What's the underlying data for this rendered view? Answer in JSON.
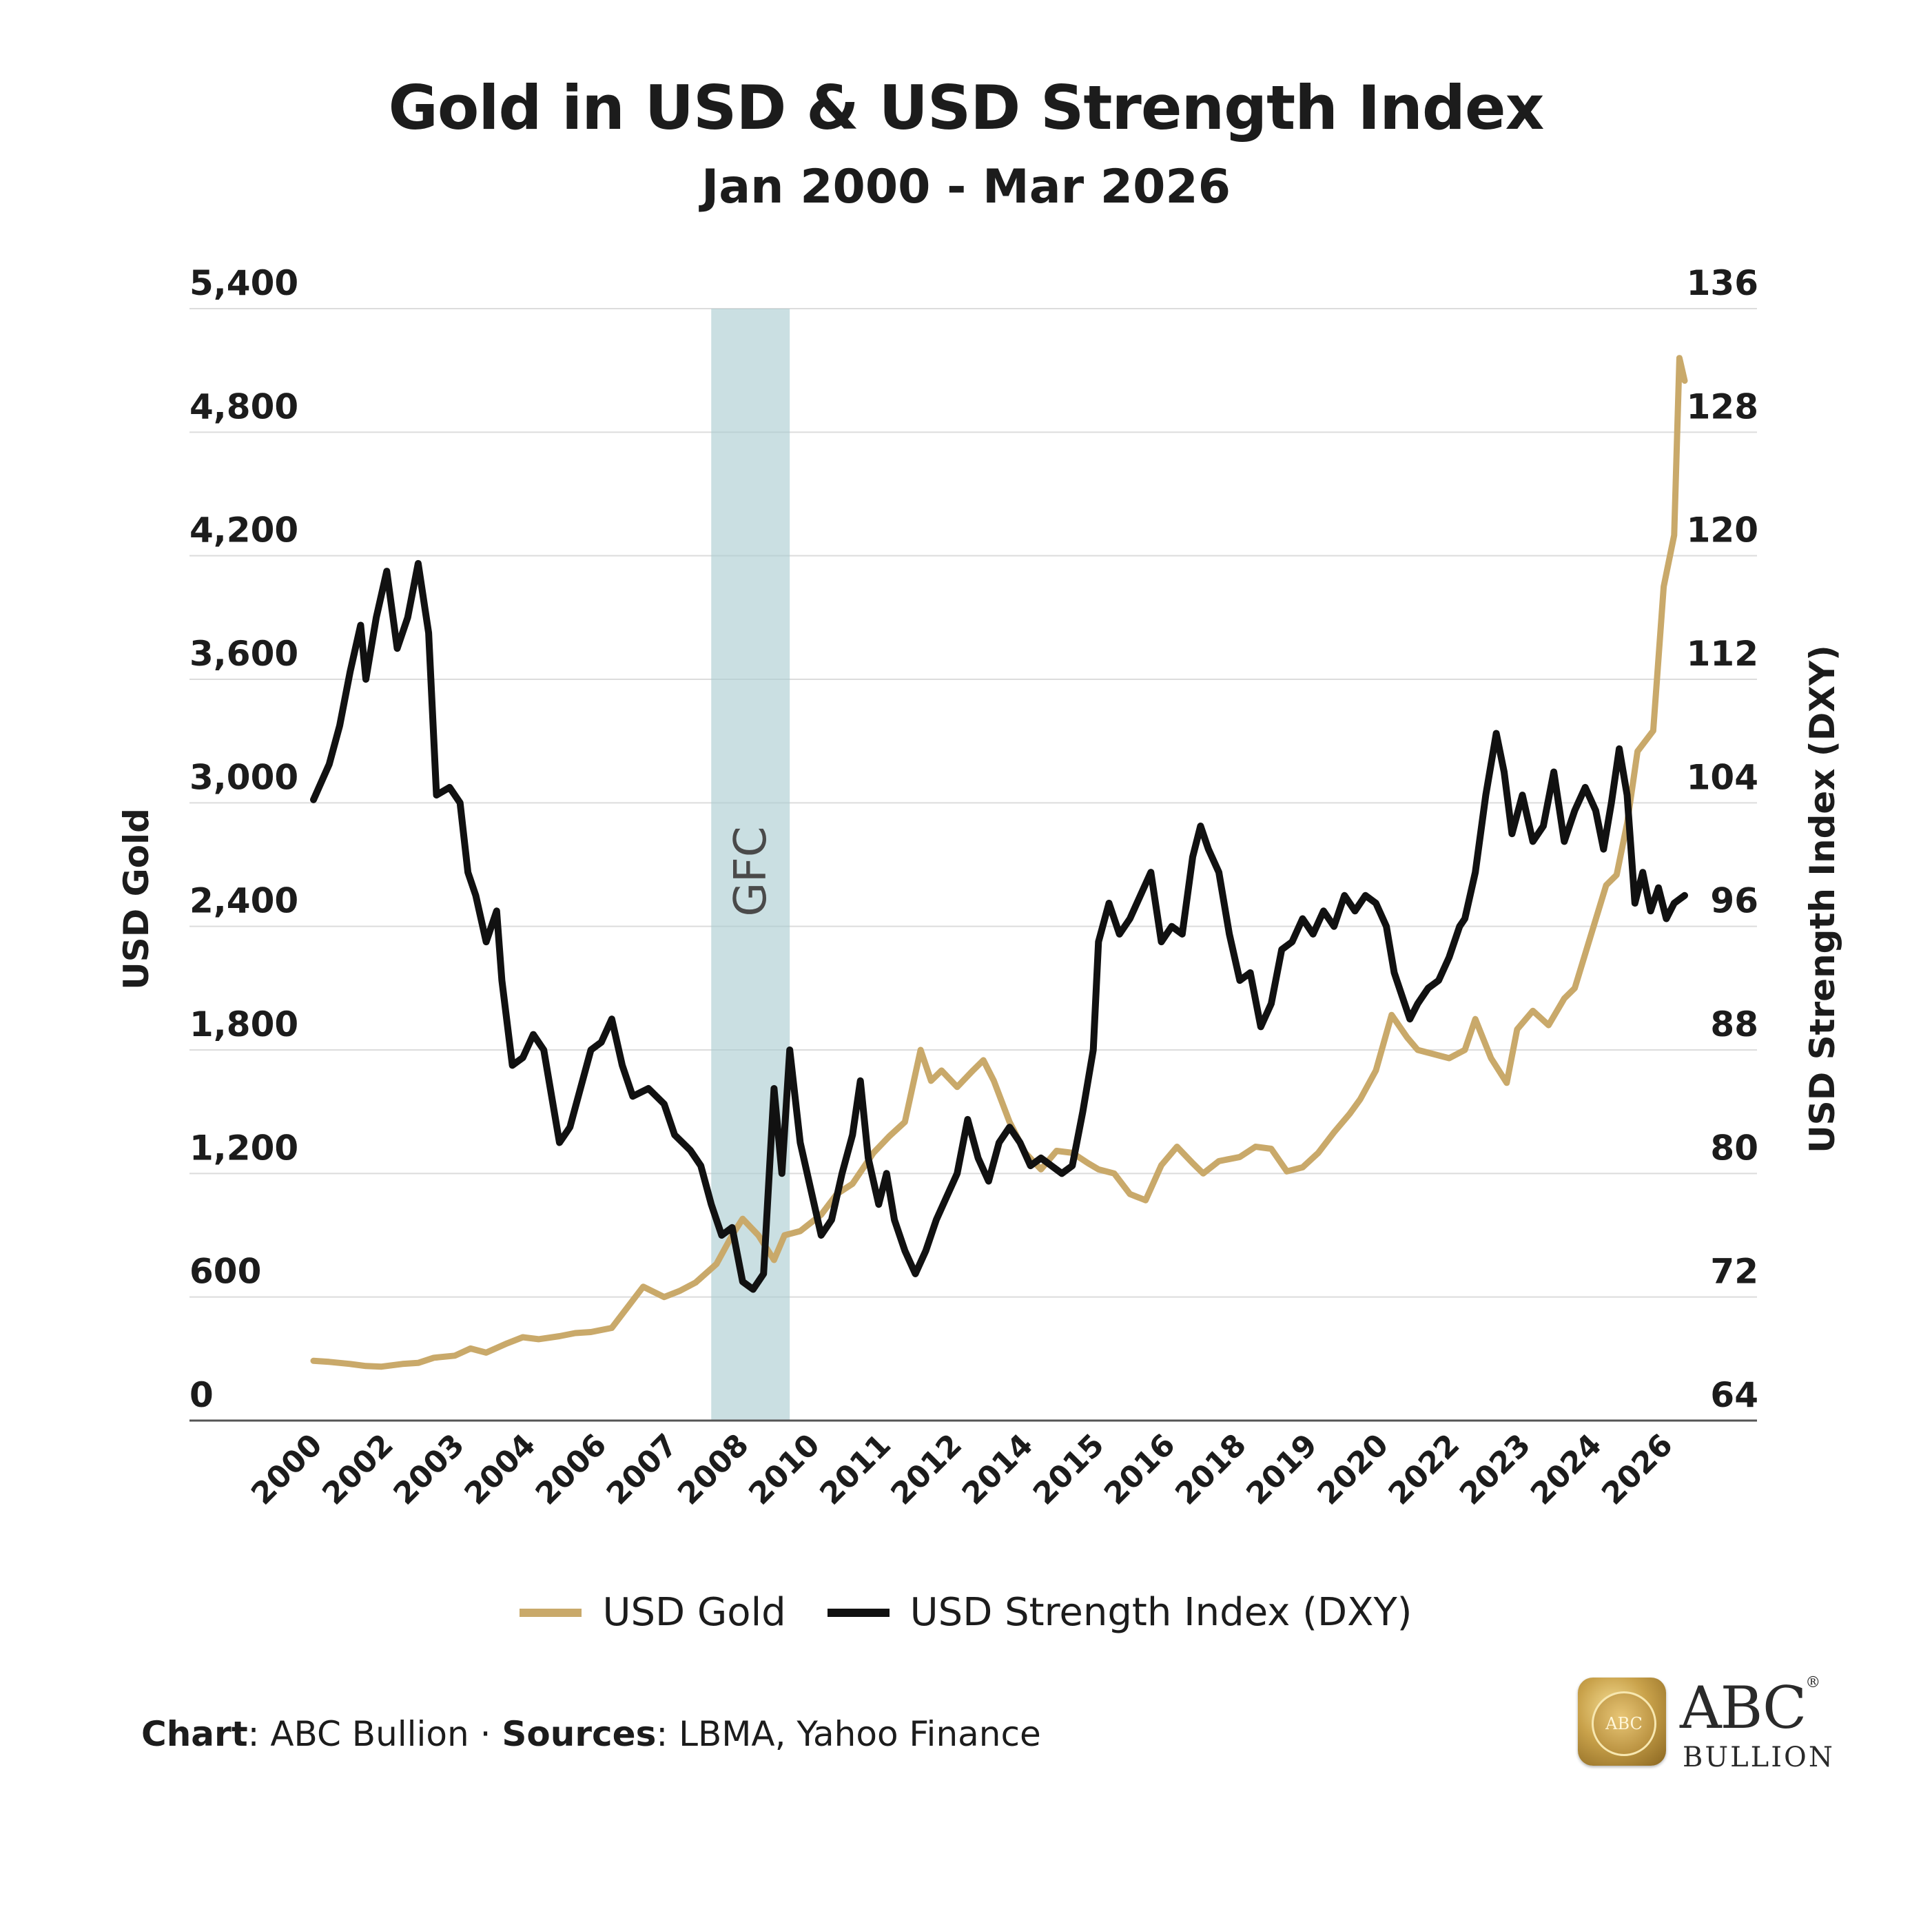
{
  "chart_data": {
    "type": "line",
    "title": "Gold in USD & USD Strength Index",
    "subtitle": "Jan 2000 - Mar 2026",
    "ylabel_left": "USD Gold",
    "ylabel_right": "USD Strength Index (DXY)",
    "ylim_left": [
      0,
      5400
    ],
    "ylim_right": [
      64,
      136
    ],
    "yticks_left": [
      "0",
      "600",
      "1,200",
      "1,800",
      "2,400",
      "3,000",
      "3,600",
      "4,200",
      "4,800",
      "5,400"
    ],
    "yticks_right": [
      "64",
      "72",
      "80",
      "88",
      "96",
      "104",
      "112",
      "120",
      "128",
      "136"
    ],
    "xticks": [
      "2000",
      "2002",
      "2003",
      "2004",
      "2006",
      "2007",
      "2008",
      "2010",
      "2011",
      "2012",
      "2014",
      "2015",
      "2016",
      "2018",
      "2019",
      "2020",
      "2022",
      "2023",
      "2024",
      "2026"
    ],
    "grid": true,
    "legend_position": "bottom",
    "shaded_region": {
      "label": "GFC",
      "start": 2007.6,
      "end": 2009.1
    },
    "series": [
      {
        "name": "USD Gold",
        "color": "#c9a96a",
        "axis": "left",
        "points": [
          [
            2000.0,
            290
          ],
          [
            2000.3,
            285
          ],
          [
            2000.7,
            275
          ],
          [
            2001.0,
            265
          ],
          [
            2001.3,
            262
          ],
          [
            2001.7,
            275
          ],
          [
            2002.0,
            280
          ],
          [
            2002.3,
            305
          ],
          [
            2002.7,
            315
          ],
          [
            2003.0,
            350
          ],
          [
            2003.3,
            330
          ],
          [
            2003.7,
            375
          ],
          [
            2004.0,
            405
          ],
          [
            2004.3,
            395
          ],
          [
            2004.7,
            410
          ],
          [
            2005.0,
            425
          ],
          [
            2005.3,
            430
          ],
          [
            2005.7,
            450
          ],
          [
            2006.0,
            550
          ],
          [
            2006.3,
            650
          ],
          [
            2006.7,
            600
          ],
          [
            2007.0,
            630
          ],
          [
            2007.3,
            670
          ],
          [
            2007.7,
            760
          ],
          [
            2008.0,
            900
          ],
          [
            2008.2,
            980
          ],
          [
            2008.5,
            900
          ],
          [
            2008.8,
            780
          ],
          [
            2009.0,
            900
          ],
          [
            2009.3,
            920
          ],
          [
            2009.7,
            1000
          ],
          [
            2010.0,
            1100
          ],
          [
            2010.3,
            1150
          ],
          [
            2010.7,
            1300
          ],
          [
            2011.0,
            1380
          ],
          [
            2011.3,
            1450
          ],
          [
            2011.6,
            1800
          ],
          [
            2011.8,
            1650
          ],
          [
            2012.0,
            1700
          ],
          [
            2012.3,
            1620
          ],
          [
            2012.6,
            1700
          ],
          [
            2012.8,
            1750
          ],
          [
            2013.0,
            1650
          ],
          [
            2013.3,
            1450
          ],
          [
            2013.6,
            1300
          ],
          [
            2013.9,
            1220
          ],
          [
            2014.2,
            1310
          ],
          [
            2014.5,
            1300
          ],
          [
            2014.8,
            1250
          ],
          [
            2015.0,
            1220
          ],
          [
            2015.3,
            1200
          ],
          [
            2015.6,
            1100
          ],
          [
            2015.9,
            1070
          ],
          [
            2016.2,
            1240
          ],
          [
            2016.5,
            1330
          ],
          [
            2016.8,
            1250
          ],
          [
            2017.0,
            1200
          ],
          [
            2017.3,
            1260
          ],
          [
            2017.7,
            1280
          ],
          [
            2018.0,
            1330
          ],
          [
            2018.3,
            1320
          ],
          [
            2018.6,
            1210
          ],
          [
            2018.9,
            1230
          ],
          [
            2019.2,
            1300
          ],
          [
            2019.5,
            1400
          ],
          [
            2019.8,
            1490
          ],
          [
            2020.0,
            1560
          ],
          [
            2020.3,
            1700
          ],
          [
            2020.6,
            1970
          ],
          [
            2020.9,
            1860
          ],
          [
            2021.1,
            1800
          ],
          [
            2021.4,
            1780
          ],
          [
            2021.7,
            1760
          ],
          [
            2022.0,
            1800
          ],
          [
            2022.2,
            1950
          ],
          [
            2022.5,
            1760
          ],
          [
            2022.8,
            1640
          ],
          [
            2023.0,
            1900
          ],
          [
            2023.3,
            1990
          ],
          [
            2023.6,
            1920
          ],
          [
            2023.9,
            2050
          ],
          [
            2024.1,
            2100
          ],
          [
            2024.4,
            2350
          ],
          [
            2024.7,
            2600
          ],
          [
            2024.9,
            2650
          ],
          [
            2025.1,
            2900
          ],
          [
            2025.3,
            3250
          ],
          [
            2025.6,
            3350
          ],
          [
            2025.8,
            4050
          ],
          [
            2026.0,
            4300
          ],
          [
            2026.1,
            5160
          ],
          [
            2026.2,
            5050
          ]
        ]
      },
      {
        "name": "USD Strength Index (DXY)",
        "color": "#111111",
        "axis": "right",
        "points": [
          [
            2000.0,
            104.2
          ],
          [
            2000.3,
            106.5
          ],
          [
            2000.5,
            109.0
          ],
          [
            2000.7,
            112.5
          ],
          [
            2000.9,
            115.5
          ],
          [
            2001.0,
            112.0
          ],
          [
            2001.2,
            116.0
          ],
          [
            2001.4,
            119.0
          ],
          [
            2001.6,
            114.0
          ],
          [
            2001.8,
            116.0
          ],
          [
            2002.0,
            119.5
          ],
          [
            2002.2,
            115.0
          ],
          [
            2002.35,
            104.5
          ],
          [
            2002.6,
            105.0
          ],
          [
            2002.8,
            104.0
          ],
          [
            2002.95,
            99.5
          ],
          [
            2003.1,
            98.0
          ],
          [
            2003.3,
            95.0
          ],
          [
            2003.5,
            97.0
          ],
          [
            2003.6,
            92.5
          ],
          [
            2003.8,
            87.0
          ],
          [
            2004.0,
            87.5
          ],
          [
            2004.2,
            89.0
          ],
          [
            2004.4,
            88.0
          ],
          [
            2004.7,
            82.0
          ],
          [
            2004.9,
            83.0
          ],
          [
            2005.1,
            85.5
          ],
          [
            2005.3,
            88.0
          ],
          [
            2005.5,
            88.5
          ],
          [
            2005.7,
            90.0
          ],
          [
            2005.9,
            87.0
          ],
          [
            2006.1,
            85.0
          ],
          [
            2006.4,
            85.5
          ],
          [
            2006.7,
            84.5
          ],
          [
            2006.9,
            82.5
          ],
          [
            2007.2,
            81.5
          ],
          [
            2007.4,
            80.5
          ],
          [
            2007.6,
            78.0
          ],
          [
            2007.8,
            76.0
          ],
          [
            2008.0,
            76.5
          ],
          [
            2008.2,
            73.0
          ],
          [
            2008.4,
            72.5
          ],
          [
            2008.6,
            73.5
          ],
          [
            2008.8,
            85.5
          ],
          [
            2008.95,
            80.0
          ],
          [
            2009.1,
            88.0
          ],
          [
            2009.3,
            82.0
          ],
          [
            2009.5,
            79.0
          ],
          [
            2009.7,
            76.0
          ],
          [
            2009.9,
            77.0
          ],
          [
            2010.1,
            80.0
          ],
          [
            2010.3,
            82.5
          ],
          [
            2010.45,
            86.0
          ],
          [
            2010.6,
            81.0
          ],
          [
            2010.8,
            78.0
          ],
          [
            2010.95,
            80.0
          ],
          [
            2011.1,
            77.0
          ],
          [
            2011.3,
            75.0
          ],
          [
            2011.5,
            73.5
          ],
          [
            2011.7,
            75.0
          ],
          [
            2011.9,
            77.0
          ],
          [
            2012.1,
            78.5
          ],
          [
            2012.3,
            80.0
          ],
          [
            2012.5,
            83.5
          ],
          [
            2012.7,
            81.0
          ],
          [
            2012.9,
            79.5
          ],
          [
            2013.1,
            82.0
          ],
          [
            2013.3,
            83.0
          ],
          [
            2013.5,
            82.0
          ],
          [
            2013.7,
            80.5
          ],
          [
            2013.9,
            81.0
          ],
          [
            2014.1,
            80.5
          ],
          [
            2014.3,
            80.0
          ],
          [
            2014.5,
            80.5
          ],
          [
            2014.7,
            84.0
          ],
          [
            2014.9,
            88.0
          ],
          [
            2015.0,
            95.0
          ],
          [
            2015.2,
            97.5
          ],
          [
            2015.4,
            95.5
          ],
          [
            2015.6,
            96.5
          ],
          [
            2015.8,
            98.0
          ],
          [
            2016.0,
            99.5
          ],
          [
            2016.2,
            95.0
          ],
          [
            2016.4,
            96.0
          ],
          [
            2016.6,
            95.5
          ],
          [
            2016.8,
            100.5
          ],
          [
            2016.95,
            102.5
          ],
          [
            2017.1,
            101.0
          ],
          [
            2017.3,
            99.5
          ],
          [
            2017.5,
            95.5
          ],
          [
            2017.7,
            92.5
          ],
          [
            2017.9,
            93.0
          ],
          [
            2018.1,
            89.5
          ],
          [
            2018.3,
            91.0
          ],
          [
            2018.5,
            94.5
          ],
          [
            2018.7,
            95.0
          ],
          [
            2018.9,
            96.5
          ],
          [
            2019.1,
            95.5
          ],
          [
            2019.3,
            97.0
          ],
          [
            2019.5,
            96.0
          ],
          [
            2019.7,
            98.0
          ],
          [
            2019.9,
            97.0
          ],
          [
            2020.1,
            98.0
          ],
          [
            2020.3,
            97.5
          ],
          [
            2020.5,
            96.0
          ],
          [
            2020.65,
            93.0
          ],
          [
            2020.8,
            91.5
          ],
          [
            2020.95,
            90.0
          ],
          [
            2021.1,
            91.0
          ],
          [
            2021.3,
            92.0
          ],
          [
            2021.5,
            92.5
          ],
          [
            2021.7,
            94.0
          ],
          [
            2021.9,
            96.0
          ],
          [
            2022.0,
            96.5
          ],
          [
            2022.2,
            99.5
          ],
          [
            2022.4,
            104.5
          ],
          [
            2022.6,
            108.5
          ],
          [
            2022.75,
            106.0
          ],
          [
            2022.9,
            102.0
          ],
          [
            2023.1,
            104.5
          ],
          [
            2023.3,
            101.5
          ],
          [
            2023.5,
            102.5
          ],
          [
            2023.7,
            106.0
          ],
          [
            2023.9,
            101.5
          ],
          [
            2024.1,
            103.5
          ],
          [
            2024.3,
            105.0
          ],
          [
            2024.5,
            103.5
          ],
          [
            2024.65,
            101.0
          ],
          [
            2024.8,
            104.0
          ],
          [
            2024.95,
            107.5
          ],
          [
            2025.1,
            104.5
          ],
          [
            2025.25,
            97.5
          ],
          [
            2025.4,
            99.5
          ],
          [
            2025.55,
            97.0
          ],
          [
            2025.7,
            98.5
          ],
          [
            2025.85,
            96.5
          ],
          [
            2026.0,
            97.5
          ],
          [
            2026.2,
            98.0
          ]
        ]
      }
    ]
  },
  "footer": {
    "chart_label": "Chart",
    "chart_value": ": ABC Bullion · ",
    "sources_label": "Sources",
    "sources_value": ": LBMA, Yahoo Finance"
  },
  "logo": {
    "badge_text": "ABC",
    "main_text": "ABC",
    "sub_text": "BULLION",
    "registered_mark": "®"
  }
}
